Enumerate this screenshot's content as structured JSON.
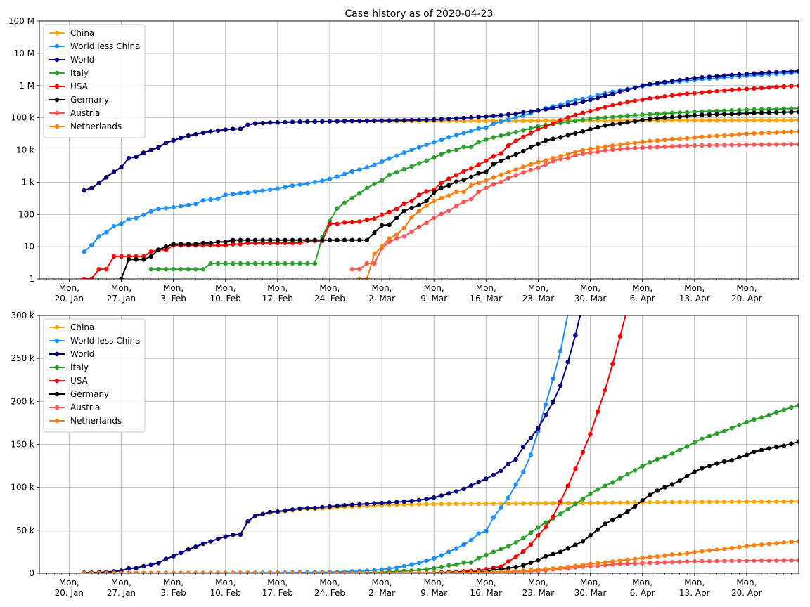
{
  "chart_data": [
    {
      "type": "line",
      "title": "Case history as of 2020-04-23",
      "xlabel": "",
      "ylabel": "",
      "yscale": "log",
      "ylim": [
        1,
        100000000
      ],
      "xlim": [
        "2020-01-16",
        "2020-04-27"
      ],
      "grid": true,
      "legend_position": "top-left",
      "x_start": "2020-01-22",
      "x_ticks": [
        {
          "date": "2020-01-20",
          "label": [
            "Mon,",
            "20. Jan"
          ]
        },
        {
          "date": "2020-01-27",
          "label": [
            "Mon,",
            "27. Jan"
          ]
        },
        {
          "date": "2020-02-03",
          "label": [
            "Mon,",
            "3. Feb"
          ]
        },
        {
          "date": "2020-02-10",
          "label": [
            "Mon,",
            "10. Feb"
          ]
        },
        {
          "date": "2020-02-17",
          "label": [
            "Mon,",
            "17. Feb"
          ]
        },
        {
          "date": "2020-02-24",
          "label": [
            "Mon,",
            "24. Feb"
          ]
        },
        {
          "date": "2020-03-02",
          "label": [
            "Mon,",
            "2. Mar"
          ]
        },
        {
          "date": "2020-03-09",
          "label": [
            "Mon,",
            "9. Mar"
          ]
        },
        {
          "date": "2020-03-16",
          "label": [
            "Mon,",
            "16. Mar"
          ]
        },
        {
          "date": "2020-03-23",
          "label": [
            "Mon,",
            "23. Mar"
          ]
        },
        {
          "date": "2020-03-30",
          "label": [
            "Mon,",
            "30. Mar"
          ]
        },
        {
          "date": "2020-04-06",
          "label": [
            "Mon,",
            "6. Apr"
          ]
        },
        {
          "date": "2020-04-13",
          "label": [
            "Mon,",
            "13. Apr"
          ]
        },
        {
          "date": "2020-04-20",
          "label": [
            "Mon,",
            "20. Apr"
          ]
        }
      ],
      "y_ticks": [
        {
          "value": 1,
          "label": "1"
        },
        {
          "value": 10,
          "label": "10"
        },
        {
          "value": 100,
          "label": "100"
        },
        {
          "value": 1000,
          "label": "1 k"
        },
        {
          "value": 10000,
          "label": "10 k"
        },
        {
          "value": 100000,
          "label": "100 k"
        },
        {
          "value": 1000000,
          "label": "1 M"
        },
        {
          "value": 10000000,
          "label": "10 M"
        },
        {
          "value": 100000000,
          "label": "100 M"
        }
      ]
    },
    {
      "type": "line",
      "title": "",
      "xlabel": "",
      "ylabel": "",
      "yscale": "linear",
      "ylim": [
        0,
        300000
      ],
      "xlim": [
        "2020-01-16",
        "2020-04-27"
      ],
      "grid": true,
      "legend_position": "top-left",
      "x_start": "2020-01-22",
      "x_ticks": [
        {
          "date": "2020-01-20",
          "label": [
            "Mon,",
            "20. Jan"
          ]
        },
        {
          "date": "2020-01-27",
          "label": [
            "Mon,",
            "27. Jan"
          ]
        },
        {
          "date": "2020-02-03",
          "label": [
            "Mon,",
            "3. Feb"
          ]
        },
        {
          "date": "2020-02-10",
          "label": [
            "Mon,",
            "10. Feb"
          ]
        },
        {
          "date": "2020-02-17",
          "label": [
            "Mon,",
            "17. Feb"
          ]
        },
        {
          "date": "2020-02-24",
          "label": [
            "Mon,",
            "24. Feb"
          ]
        },
        {
          "date": "2020-03-02",
          "label": [
            "Mon,",
            "2. Mar"
          ]
        },
        {
          "date": "2020-03-09",
          "label": [
            "Mon,",
            "9. Mar"
          ]
        },
        {
          "date": "2020-03-16",
          "label": [
            "Mon,",
            "16. Mar"
          ]
        },
        {
          "date": "2020-03-23",
          "label": [
            "Mon,",
            "23. Mar"
          ]
        },
        {
          "date": "2020-03-30",
          "label": [
            "Mon,",
            "30. Mar"
          ]
        },
        {
          "date": "2020-04-06",
          "label": [
            "Mon,",
            "6. Apr"
          ]
        },
        {
          "date": "2020-04-13",
          "label": [
            "Mon,",
            "13. Apr"
          ]
        },
        {
          "date": "2020-04-20",
          "label": [
            "Mon,",
            "20. Apr"
          ]
        }
      ],
      "y_ticks": [
        {
          "value": 0,
          "label": "0"
        },
        {
          "value": 50000,
          "label": "50 k"
        },
        {
          "value": 100000,
          "label": "100 k"
        },
        {
          "value": 150000,
          "label": "150 k"
        },
        {
          "value": 200000,
          "label": "200 k"
        },
        {
          "value": 250000,
          "label": "250 k"
        },
        {
          "value": 300000,
          "label": "300 k"
        }
      ]
    }
  ],
  "series": [
    {
      "name": "China",
      "color": "#ffa500",
      "values": [
        548,
        643,
        920,
        1406,
        2075,
        2877,
        5509,
        6087,
        8141,
        9802,
        11891,
        16630,
        19716,
        23707,
        27440,
        30587,
        34110,
        36814,
        39829,
        42354,
        44386,
        44759,
        59895,
        66358,
        68413,
        70513,
        71164,
        72267,
        73250,
        74526,
        74952,
        75000,
        75562,
        76199,
        76731,
        77154,
        77660,
        78064,
        78496,
        78825,
        79228,
        79486,
        79801,
        80004,
        80238,
        80401,
        80531,
        80622,
        80685,
        80746,
        80801,
        80859,
        80896,
        80966,
        81009,
        81048,
        81097,
        81158,
        81211,
        81257,
        81303,
        81391,
        81438,
        81505,
        81632,
        81691,
        81746,
        81804,
        81890,
        81941,
        81996,
        82071,
        82186,
        82265,
        82321,
        82418,
        82551,
        82614,
        82672,
        82727,
        82850,
        82886,
        82941,
        83017,
        83090,
        83149,
        83194,
        83294,
        83303,
        83377,
        83403,
        83426,
        83443,
        83486,
        83535,
        83560,
        83749,
        83854
      ]
    },
    {
      "name": "World less China",
      "color": "#1e90ff",
      "values": [
        7,
        11,
        21,
        28,
        43,
        52,
        71,
        77,
        98,
        126,
        147,
        158,
        167,
        183,
        195,
        213,
        273,
        292,
        308,
        403,
        426,
        457,
        470,
        511,
        543,
        592,
        633,
        708,
        782,
        844,
        893,
        1011,
        1112,
        1266,
        1486,
        1790,
        2173,
        2462,
        2886,
        3462,
        4318,
        5444,
        6656,
        8280,
        10123,
        12174,
        14648,
        17429,
        20839,
        24878,
        28969,
        33379,
        38411,
        46160,
        49040,
        65040,
        76280,
        87930,
        103210,
        117970,
        137780,
        165170,
        196550,
        226490,
        258210,
        302310,
        355180,
        385590,
        440530,
        499480,
        568870,
        638150,
        709790,
        782210,
        878770,
        952090,
        1043850,
        1113910,
        1189240,
        1266450,
        1334730,
        1405460,
        1475190,
        1553090,
        1623490,
        1683930,
        1761980,
        1848020,
        1933300,
        2011220,
        2082830,
        2145120,
        2229200,
        2305270,
        2391750,
        2474050,
        2551130,
        2625510
      ]
    },
    {
      "name": "World",
      "color": "#000080",
      "values": [
        555,
        654,
        941,
        1434,
        2118,
        2929,
        5580,
        6164,
        8239,
        9928,
        12038,
        16788,
        19883,
        23890,
        27635,
        30800,
        34383,
        37106,
        40137,
        42757,
        44812,
        45216,
        60365,
        66869,
        68956,
        71105,
        71797,
        72975,
        74032,
        75370,
        75845,
        76011,
        77032,
        77710,
        78516,
        79100,
        79733,
        80345,
        80837,
        81337,
        81765,
        82276,
        82879,
        83380,
        84138,
        85178,
        86426,
        88083,
        90334,
        92971,
        95278,
        98132,
        102111,
        106239,
        109974,
        114583,
        119379,
        127230,
        132567,
        147090,
        157328,
        168715,
        183989,
        199047,
        218353,
        245923,
        276952,
        313050,
        360000,
        418300,
        479800,
        544500,
        637300,
        733000,
        848400,
        1000000,
        1100000,
        1180000,
        1280000,
        1360000,
        1470000,
        1580000,
        1700000,
        1790000,
        1870000,
        1960000,
        2040000,
        2110000,
        2190000,
        2280000,
        2370000,
        2450000,
        2530000,
        2600000,
        2680000,
        2760000,
        2840000,
        2920000
      ]
    },
    {
      "name": "Italy",
      "color": "#2ca02c",
      "values": [
        0,
        0,
        0,
        0,
        0,
        0,
        0,
        0,
        0,
        2,
        2,
        2,
        2,
        2,
        2,
        2,
        2,
        3,
        3,
        3,
        3,
        3,
        3,
        3,
        3,
        3,
        3,
        3,
        3,
        3,
        3,
        3,
        20,
        62,
        155,
        229,
        322,
        453,
        655,
        888,
        1128,
        1694,
        2036,
        2502,
        3089,
        3858,
        4636,
        5883,
        7375,
        9172,
        10149,
        12462,
        12462,
        17660,
        21157,
        24747,
        27980,
        31506,
        35713,
        41035,
        47021,
        53578,
        59138,
        63927,
        69176,
        74386,
        80589,
        86498,
        92472,
        97689,
        101739,
        105792,
        110574,
        115242,
        119827,
        124632,
        128948,
        132547,
        135586,
        139422,
        143626,
        147577,
        152271,
        156363,
        159516,
        162488,
        165155,
        168941,
        172434,
        175925,
        178972,
        181228,
        183957,
        187327,
        189973,
        192994,
        195351,
        197675
      ]
    },
    {
      "name": "USA",
      "color": "#ff0000",
      "values": [
        1,
        1,
        2,
        2,
        5,
        5,
        5,
        5,
        5,
        7,
        8,
        8,
        11,
        11,
        11,
        11,
        11,
        11,
        11,
        11,
        12,
        12,
        13,
        13,
        13,
        13,
        13,
        13,
        13,
        13,
        15,
        15,
        15,
        51,
        51,
        57,
        58,
        60,
        68,
        74,
        98,
        118,
        149,
        217,
        262,
        402,
        518,
        583,
        959,
        1281,
        1663,
        2179,
        2727,
        3499,
        4632,
        6421,
        7783,
        13677,
        19100,
        25489,
        33276,
        43847,
        53740,
        65778,
        83836,
        101657,
        121478,
        140886,
        161807,
        188172,
        213372,
        243616,
        275586,
        308850,
        337072,
        366667,
        396223,
        429052,
        461437,
        496535,
        526396,
        555313,
        580619,
        607670,
        636350,
        667801,
        699706,
        732197,
        758809,
        784326,
        811865,
        840351,
        869170,
        905358,
        938154,
        965785,
        988197,
        1010356
      ]
    },
    {
      "name": "Germany",
      "color": "#000000",
      "values": [
        0,
        0,
        0,
        0,
        0,
        1,
        4,
        4,
        4,
        5,
        8,
        10,
        12,
        12,
        12,
        12,
        13,
        13,
        14,
        14,
        16,
        16,
        16,
        16,
        16,
        16,
        16,
        16,
        16,
        16,
        16,
        16,
        16,
        16,
        16,
        16,
        16,
        16,
        16,
        27,
        46,
        48,
        79,
        130,
        159,
        196,
        262,
        482,
        670,
        799,
        1040,
        1176,
        1457,
        1908,
        2078,
        3675,
        4585,
        5795,
        7272,
        9257,
        12327,
        15320,
        19848,
        22213,
        24873,
        29056,
        32986,
        37323,
        43938,
        50871,
        57695,
        62095,
        66885,
        71808,
        77872,
        84794,
        91159,
        96092,
        100123,
        103374,
        107663,
        113296,
        118181,
        122171,
        124908,
        127854,
        130072,
        131359,
        134753,
        137698,
        141397,
        143342,
        145184,
        147065,
        148291,
        150648,
        153129,
        154999
      ]
    },
    {
      "name": "Austria",
      "color": "#ff5555",
      "values": [
        0,
        0,
        0,
        0,
        0,
        0,
        0,
        0,
        0,
        0,
        0,
        0,
        0,
        0,
        0,
        0,
        0,
        0,
        0,
        0,
        0,
        0,
        0,
        0,
        0,
        0,
        0,
        0,
        0,
        0,
        0,
        0,
        0,
        0,
        0,
        0,
        2,
        2,
        3,
        3,
        9,
        14,
        18,
        21,
        29,
        41,
        55,
        79,
        104,
        131,
        182,
        246,
        302,
        504,
        655,
        860,
        1018,
        1332,
        1646,
        2013,
        2388,
        2814,
        3582,
        4474,
        5283,
        5588,
        6909,
        7657,
        8271,
        8788,
        9618,
        10180,
        10711,
        11129,
        11524,
        11781,
        12051,
        12297,
        12639,
        12942,
        13244,
        13555,
        13806,
        13945,
        14041,
        14226,
        14336,
        14476,
        14595,
        14671,
        14749,
        14795,
        14873,
        14925,
        15002,
        15071,
        15148,
        15225
      ]
    },
    {
      "name": "Netherlands",
      "color": "#ff7f0e",
      "values": [
        0,
        0,
        0,
        0,
        0,
        0,
        0,
        0,
        0,
        0,
        0,
        0,
        0,
        0,
        0,
        0,
        0,
        0,
        0,
        0,
        0,
        0,
        0,
        0,
        0,
        0,
        0,
        0,
        0,
        0,
        0,
        0,
        0,
        0,
        0,
        0,
        0,
        1,
        1,
        6,
        10,
        18,
        24,
        38,
        82,
        128,
        188,
        265,
        321,
        382,
        503,
        503,
        804,
        959,
        1135,
        1413,
        1705,
        2051,
        2460,
        2994,
        3631,
        4204,
        4749,
        5560,
        6412,
        7431,
        8603,
        9762,
        10866,
        11750,
        12595,
        13614,
        14697,
        15723,
        16627,
        17851,
        18803,
        19580,
        20549,
        21762,
        22090,
        23097,
        24413,
        25587,
        26551,
        27419,
        28153,
        29214,
        30449,
        31589,
        32655,
        33405,
        34134,
        34842,
        35729,
        36535,
        37190,
        37845
      ]
    }
  ]
}
